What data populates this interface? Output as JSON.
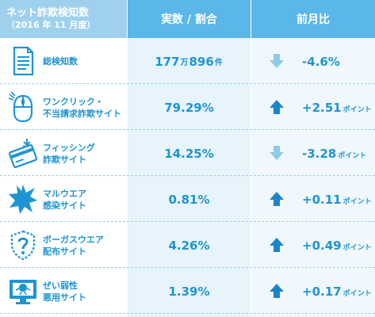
{
  "header": {
    "title": "ネット詐欺検知数",
    "subtitle": "（2016 年 11 月度）",
    "col2": "実数 / 割合",
    "col3": "前月比"
  },
  "colors": {
    "accent": "#1f94d2",
    "header_dark": "#5ab7e8",
    "header_light": "#9fd1ee",
    "arrow_dark": "#1a86c9",
    "arrow_light": "#8fcbe9"
  },
  "rows": [
    {
      "icon": "document-icon",
      "label1": "総検知数",
      "label2": "",
      "value_main": "177",
      "value_unit1": "万",
      "value_rest": "896",
      "value_unit2": "件",
      "direction": "down",
      "change": "-4.6%",
      "change_unit": ""
    },
    {
      "icon": "mouse-icon",
      "label1": "ワンクリック・",
      "label2": "不当請求詐欺サイト",
      "value_main": "79.29%",
      "value_unit1": "",
      "value_rest": "",
      "value_unit2": "",
      "direction": "up",
      "change": "+2.51",
      "change_unit": "ポイント"
    },
    {
      "icon": "credit-card-icon",
      "label1": "フィッシング",
      "label2": "詐欺サイト",
      "value_main": "14.25%",
      "value_unit1": "",
      "value_rest": "",
      "value_unit2": "",
      "direction": "down",
      "change": "-3.28",
      "change_unit": "ポイント"
    },
    {
      "icon": "malware-burst-icon",
      "label1": "マルウエア",
      "label2": "感染サイト",
      "value_main": "0.81%",
      "value_unit1": "",
      "value_rest": "",
      "value_unit2": "",
      "direction": "up",
      "change": "+0.11",
      "change_unit": "ポイント"
    },
    {
      "icon": "fake-shield-icon",
      "label1": "ボーガスウエア",
      "label2": "配布サイト",
      "value_main": "4.26%",
      "value_unit1": "",
      "value_rest": "",
      "value_unit2": "",
      "direction": "up",
      "change": "+0.49",
      "change_unit": "ポイント"
    },
    {
      "icon": "vulnerable-monitor-icon",
      "label1": "ぜい弱性",
      "label2": "悪用サイト",
      "value_main": "1.39%",
      "value_unit1": "",
      "value_rest": "",
      "value_unit2": "",
      "direction": "up",
      "change": "+0.17",
      "change_unit": "ポイント"
    }
  ]
}
